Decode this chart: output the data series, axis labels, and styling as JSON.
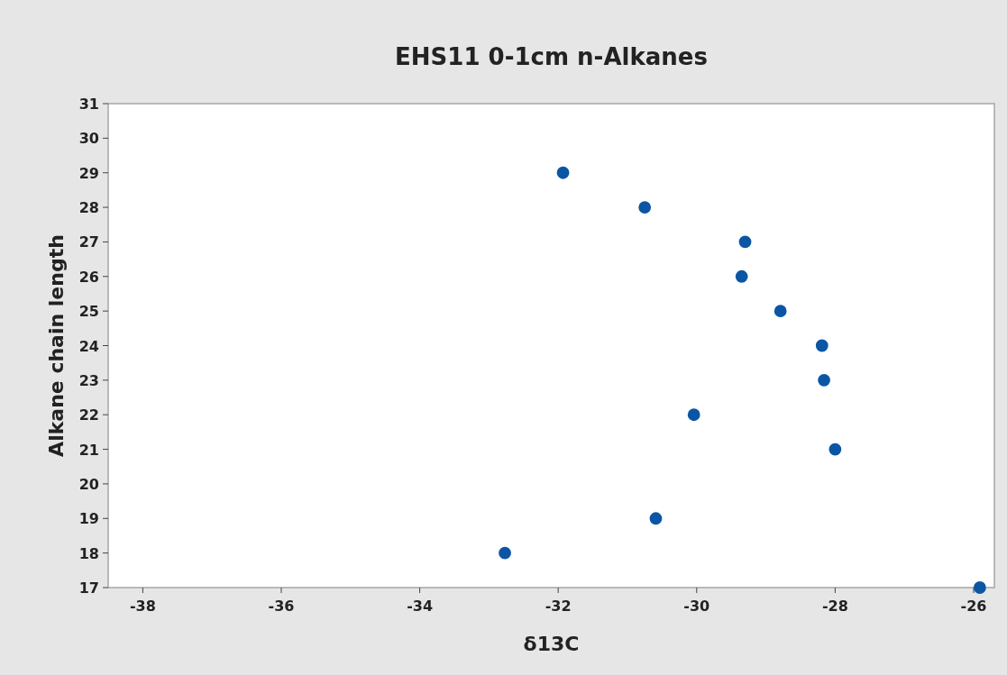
{
  "chart_data": {
    "type": "scatter",
    "title": "EHS11 0-1cm n-Alkanes",
    "xlabel": "δ13C",
    "ylabel": "Alkane chain length",
    "x": [
      -31.93,
      -30.75,
      -29.3,
      -29.35,
      -28.79,
      -28.19,
      -28.16,
      -30.04,
      -28.0,
      -30.59,
      -32.77,
      -25.91
    ],
    "series": [
      {
        "color": "#0b56a4",
        "values": [
          29,
          28,
          27,
          26,
          25,
          24,
          23,
          22,
          21,
          19,
          18,
          17
        ]
      }
    ],
    "xlim": [
      -38.5,
      -25.7
    ],
    "xticks": [
      -38,
      -36,
      -34,
      -32,
      -30,
      -28,
      -26
    ],
    "ylim": [
      17,
      31
    ],
    "yticks": [
      17,
      18,
      19,
      20,
      21,
      22,
      23,
      24,
      25,
      26,
      27,
      28,
      29,
      30,
      31
    ],
    "marker": "circle",
    "grid": false
  }
}
